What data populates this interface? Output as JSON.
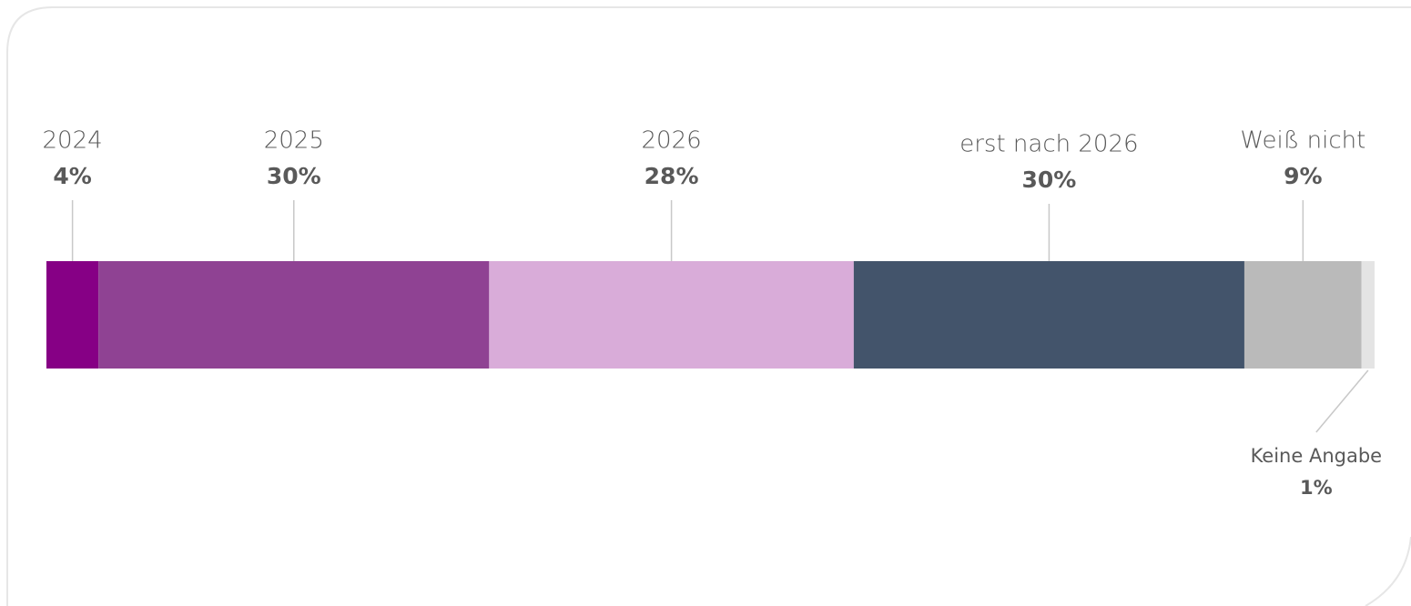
{
  "chart_data": {
    "type": "stacked-bar",
    "categories": [
      "2024",
      "2025",
      "2026",
      "erst nach 2026",
      "Weiß nicht",
      "Keine Angabe"
    ],
    "values": [
      4,
      30,
      28,
      30,
      9,
      1
    ],
    "value_labels": [
      "4%",
      "30%",
      "28%",
      "30%",
      "9%",
      "1%"
    ],
    "colors": [
      "#860085",
      "#8f4293",
      "#d9acd9",
      "#43546b",
      "#bababa",
      "#e4e4e4"
    ]
  }
}
